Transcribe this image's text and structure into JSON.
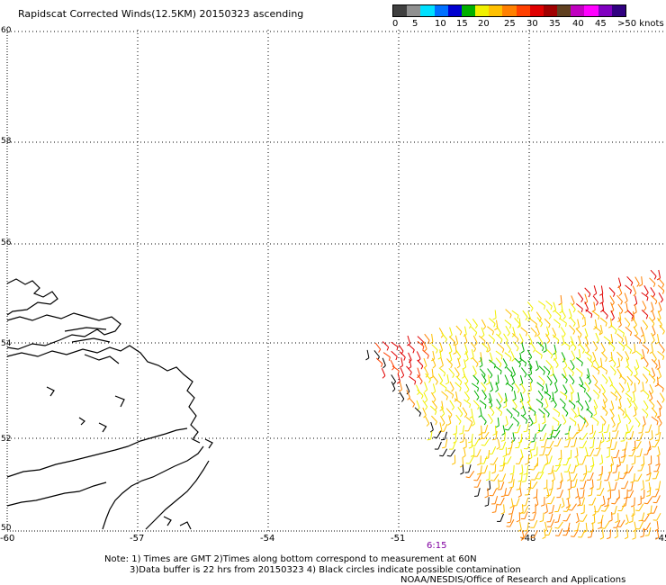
{
  "title": "Rapidscat Corrected Winds(12.5KM) 20150323 ascending",
  "colorbar": {
    "swatches": [
      "#404040",
      "#909090",
      "#00e0ff",
      "#0070ff",
      "#0000d0",
      "#00b000",
      "#f0f000",
      "#ffc000",
      "#ff8000",
      "#ff4000",
      "#e00000",
      "#a00000",
      "#604020",
      "#c000c0",
      "#ff00ff",
      "#8000c0",
      "#300080"
    ],
    "labels": [
      "0",
      "5",
      "10",
      "15",
      "20",
      "25",
      "30",
      "35",
      "40",
      "45",
      ">50 knots"
    ]
  },
  "map": {
    "lon_ticks": [
      "-60",
      "-57",
      "-54",
      "-51",
      "-48",
      "-45"
    ],
    "lat_ticks": [
      "60",
      "58",
      "56",
      "54",
      "52",
      "50"
    ]
  },
  "time_label": "6:15",
  "notes": {
    "line1": "Note: 1) Times are GMT 2)Times along bottom correspond to measurement at 60N",
    "line2": "3)Data buffer is 22 hrs from 20150323 4) Black circles indicate possible contamination",
    "line3": "NOAA/NESDIS/Office of Research and Applications"
  }
}
